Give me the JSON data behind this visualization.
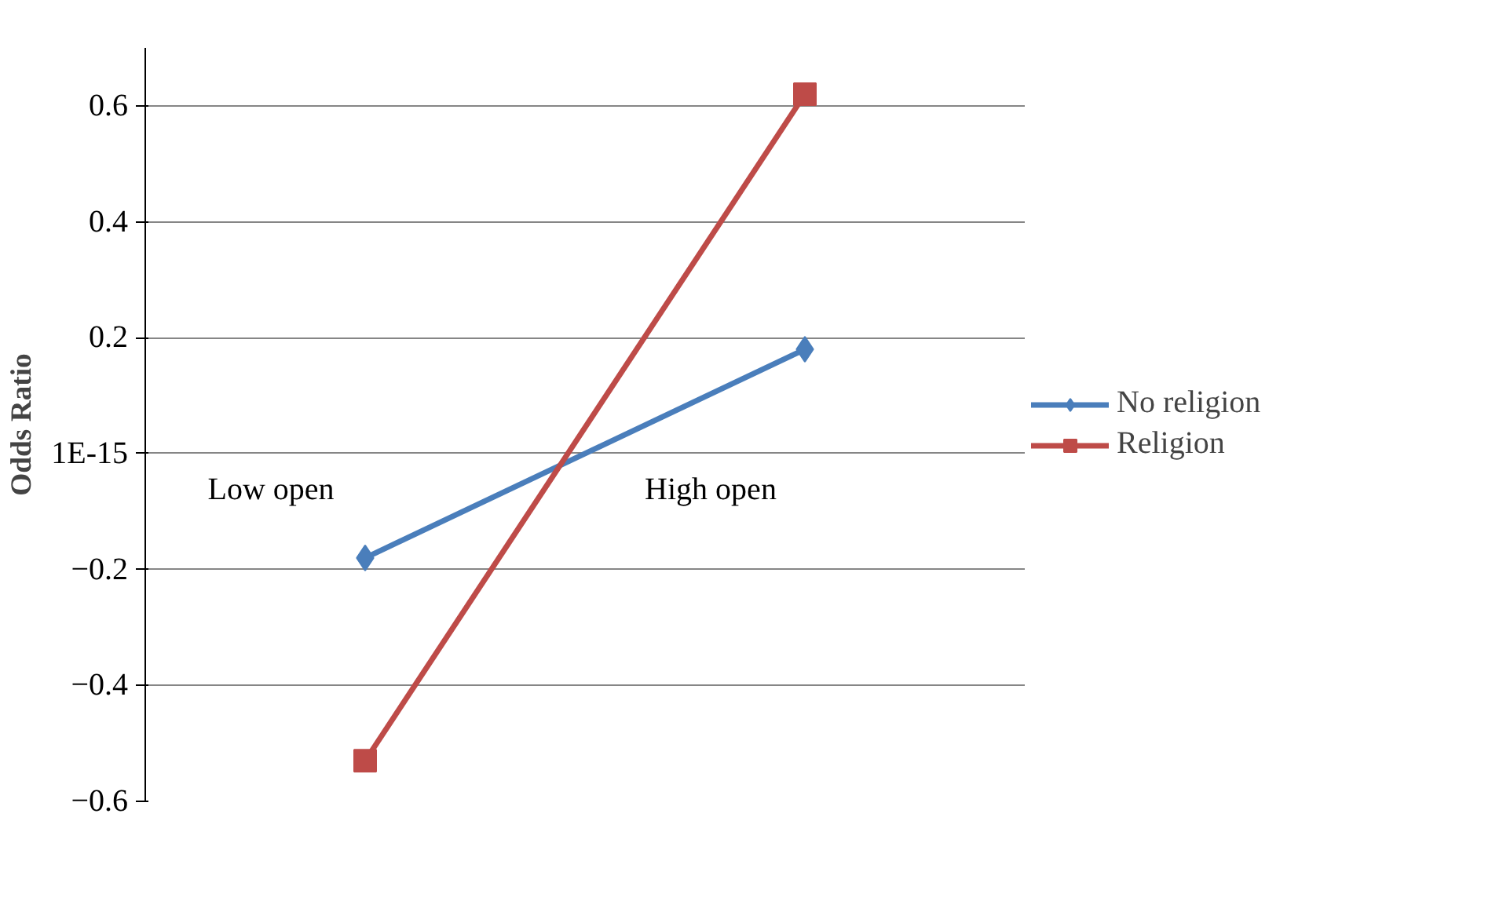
{
  "chart_data": {
    "type": "line",
    "ylabel": "Odds Ratio",
    "categories": [
      "Low open",
      "High open"
    ],
    "series": [
      {
        "name": "No religion",
        "color": "#4a7ebb",
        "values": [
          -0.18,
          0.18
        ],
        "marker": "diamond"
      },
      {
        "name": "Religion",
        "color": "#be4b48",
        "values": [
          -0.53,
          0.62
        ],
        "marker": "square"
      }
    ],
    "ylim": [
      -0.6,
      0.7
    ],
    "yticks": [
      -0.6,
      -0.4,
      -0.2,
      {
        "value": 0,
        "label": "1E-15"
      },
      0.2,
      0.4,
      0.6
    ],
    "grid": "y",
    "legend": "right"
  }
}
